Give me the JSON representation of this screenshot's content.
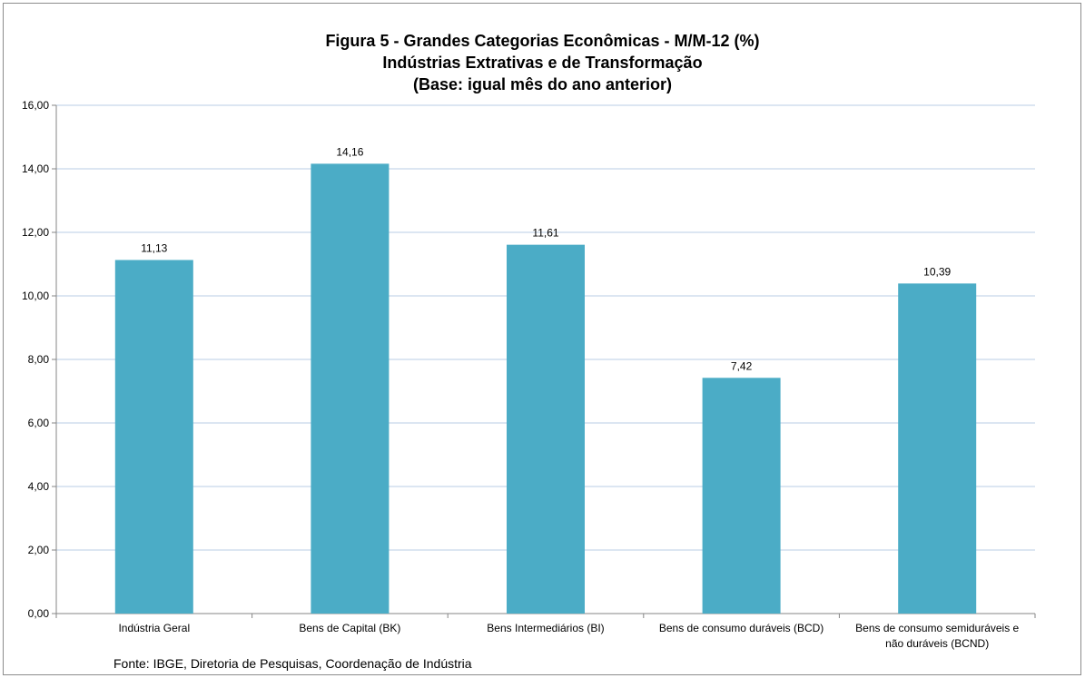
{
  "chart_data": {
    "type": "bar",
    "title": "Figura 5 - Grandes Categorias Econômicas - M/M-12 (%)",
    "subtitle": "Indústrias Extrativas e de Transformação",
    "subtitle2": "(Base: igual mês do ano anterior)",
    "categories": [
      "Indústria Geral",
      "Bens de Capital (BK)",
      "Bens Intermediários (BI)",
      "Bens de consumo duráveis (BCD)",
      "Bens de consumo semiduráveis e não duráveis (BCND)"
    ],
    "values": [
      11.13,
      14.16,
      11.61,
      7.42,
      10.39
    ],
    "data_labels": [
      "11,13",
      "14,16",
      "11,61",
      "7,42",
      "10,39"
    ],
    "yticks": [
      "0,00",
      "2,00",
      "4,00",
      "6,00",
      "8,00",
      "10,00",
      "12,00",
      "14,00",
      "16,00"
    ],
    "ylim": [
      0,
      16
    ],
    "grid": true,
    "bar_color": "#4bacc6",
    "source": "Fonte: IBGE, Diretoria de Pesquisas, Coordenação de Indústria"
  }
}
